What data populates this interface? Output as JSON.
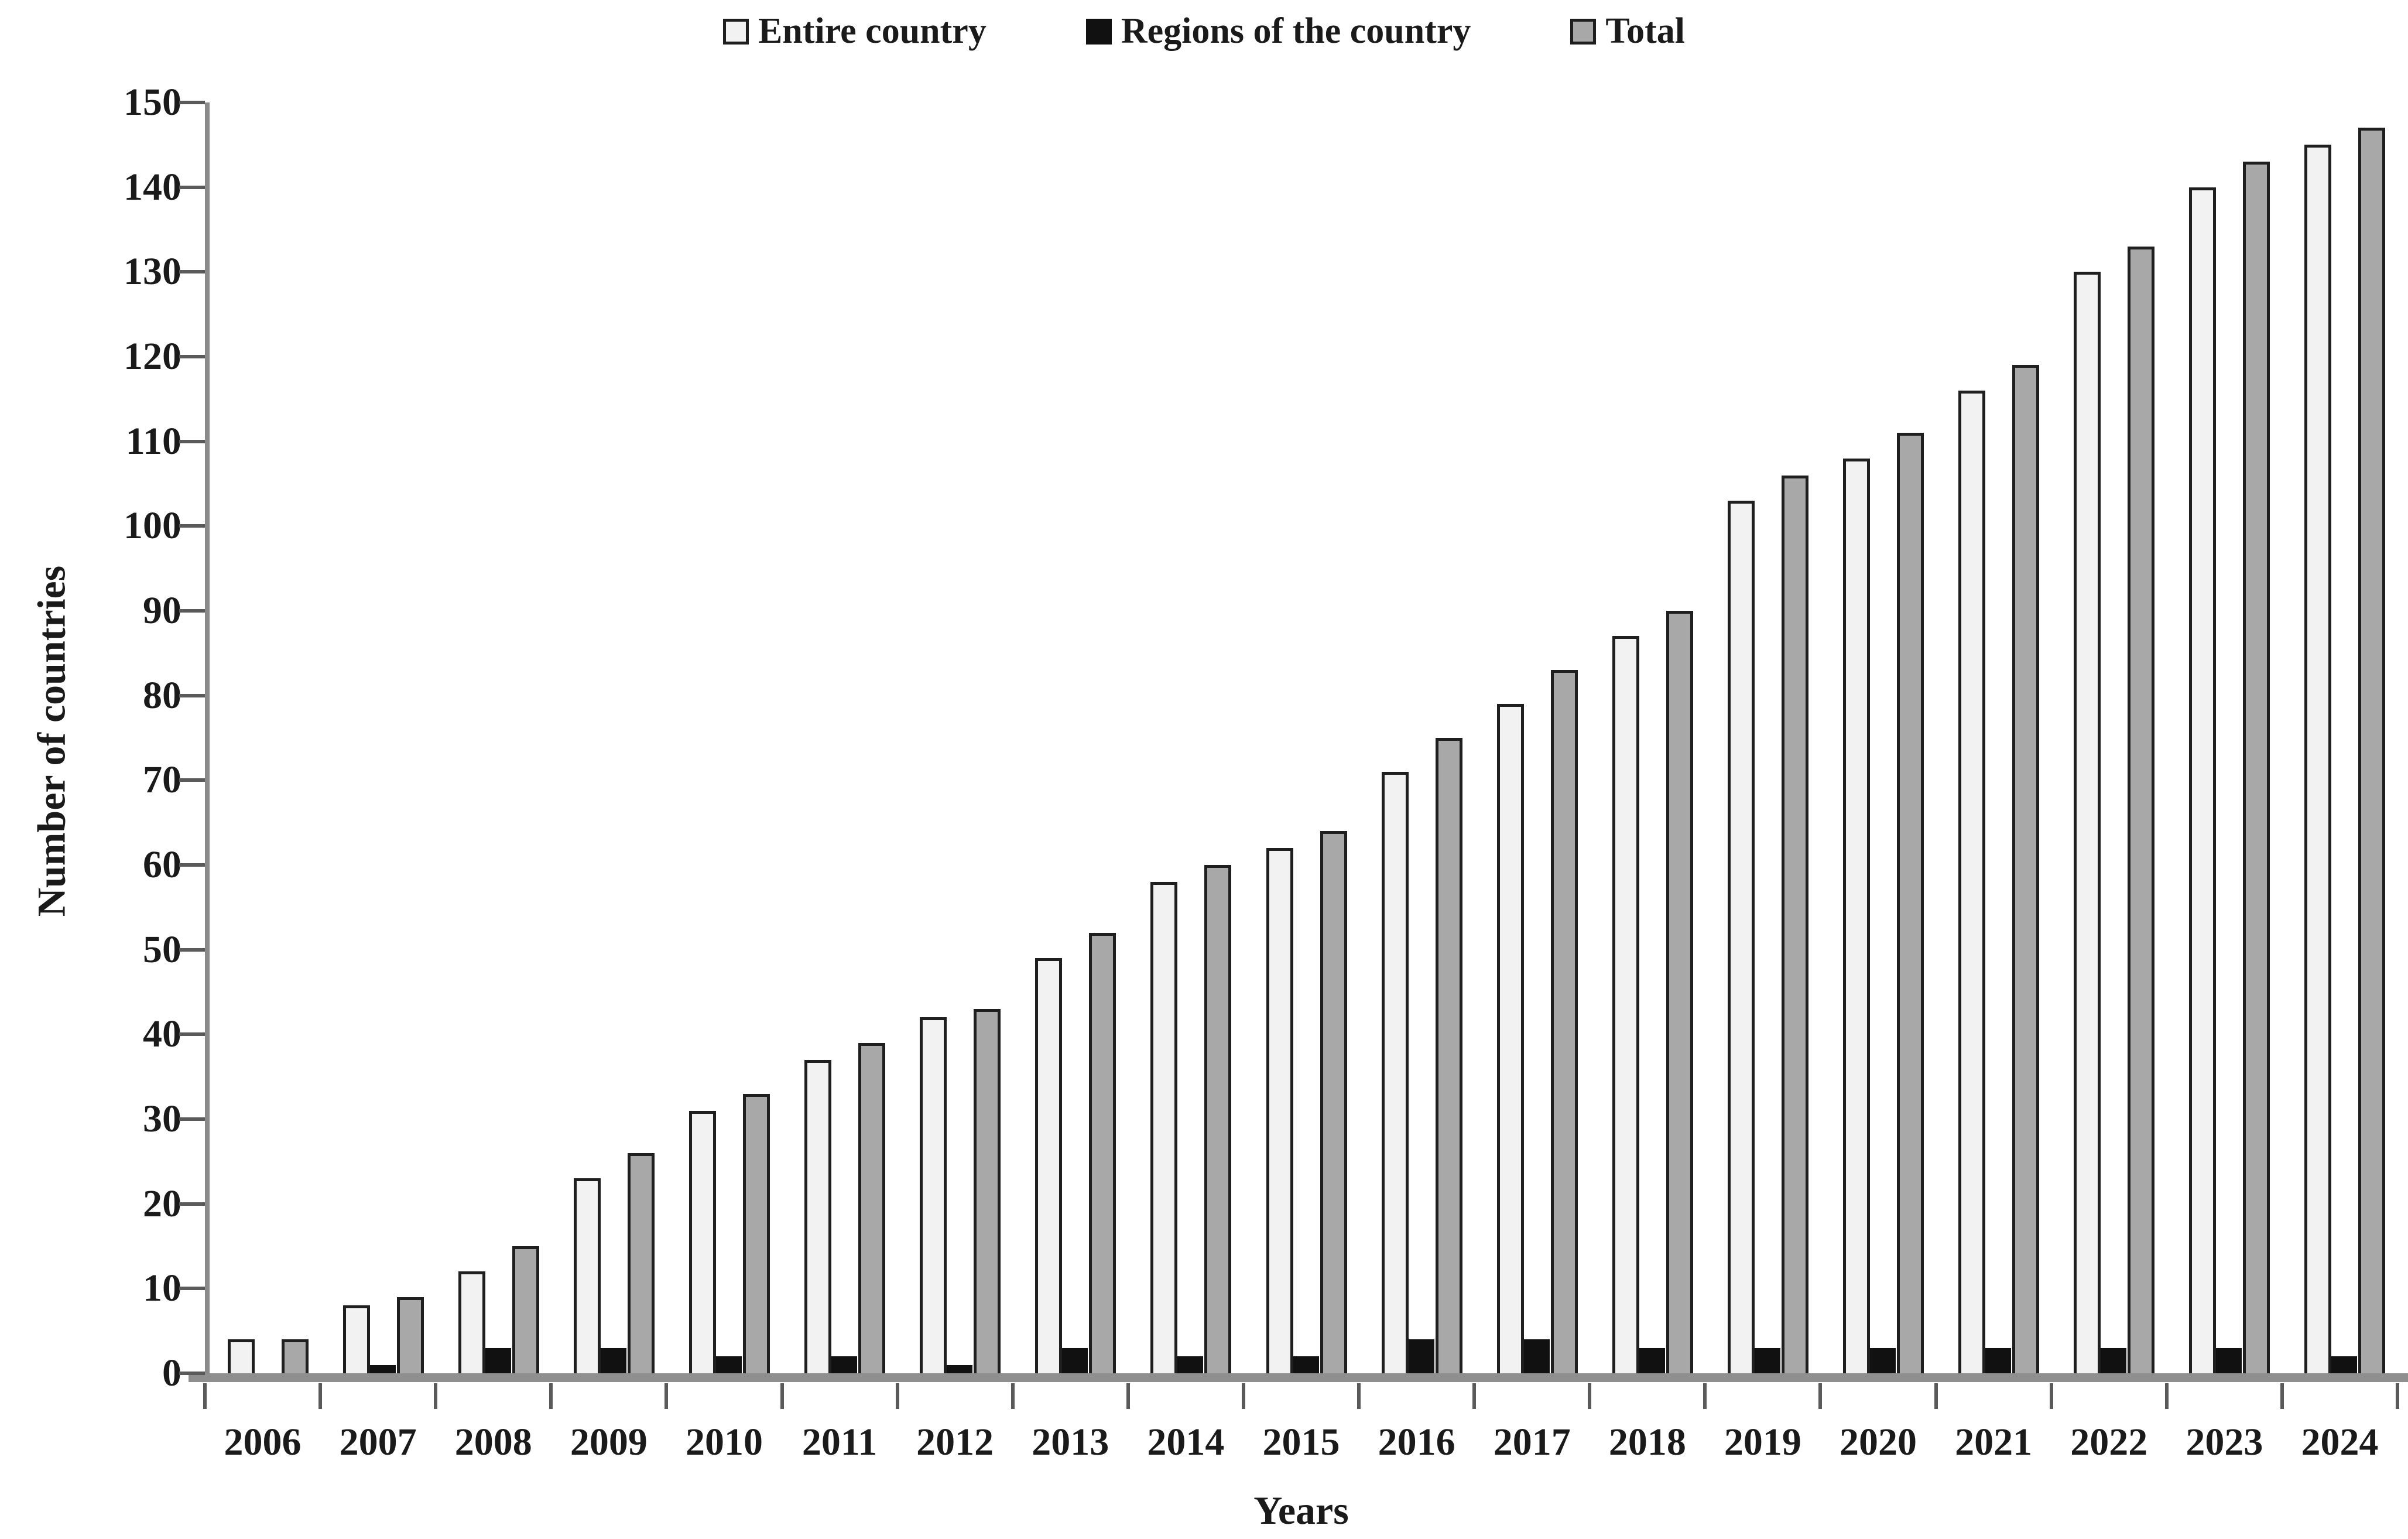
{
  "chart_data": {
    "type": "bar",
    "title": "",
    "xlabel": "Years",
    "ylabel": "Number of countries",
    "ylim": [
      0,
      150
    ],
    "ytick_step": 10,
    "yticks": [
      0,
      10,
      20,
      30,
      40,
      50,
      60,
      70,
      80,
      90,
      100,
      110,
      120,
      130,
      140,
      150
    ],
    "grid": false,
    "legend_position": "top-center",
    "categories": [
      "2006",
      "2007",
      "2008",
      "2009",
      "2010",
      "2011",
      "2012",
      "2013",
      "2014",
      "2015",
      "2016",
      "2017",
      "2018",
      "2019",
      "2020",
      "2021",
      "2022",
      "2023",
      "2024"
    ],
    "series": [
      {
        "name": "Entire country",
        "color": "#f2f2f2",
        "border_color": "#1f1f1f",
        "values": [
          4,
          8,
          12,
          23,
          31,
          37,
          42,
          49,
          58,
          62,
          71,
          79,
          87,
          103,
          108,
          116,
          130,
          140,
          145
        ]
      },
      {
        "name": "Regions of the country",
        "color": "#111111",
        "border_color": "#111111",
        "values": [
          0,
          1,
          3,
          3,
          2,
          2,
          1,
          3,
          2,
          2,
          4,
          4,
          3,
          3,
          3,
          3,
          3,
          3,
          2
        ]
      },
      {
        "name": "Total",
        "color": "#a8a8a8",
        "border_color": "#1f1f1f",
        "values": [
          4,
          9,
          15,
          26,
          33,
          39,
          43,
          52,
          60,
          64,
          75,
          83,
          90,
          106,
          111,
          119,
          133,
          143,
          147
        ]
      }
    ],
    "axis_color": "#8a8a8a",
    "tick_color": "#5a5a5a",
    "text_color": "#1a1a1a"
  }
}
